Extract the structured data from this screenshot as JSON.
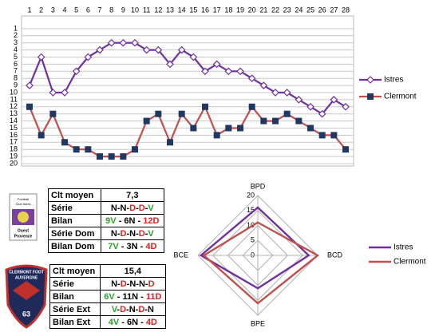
{
  "chart_data": [
    {
      "type": "line",
      "x": [
        1,
        2,
        3,
        4,
        5,
        6,
        7,
        8,
        9,
        10,
        11,
        12,
        13,
        14,
        15,
        16,
        17,
        18,
        19,
        20,
        21,
        22,
        23,
        24,
        25,
        26,
        27,
        28
      ],
      "xlim": [
        1,
        28
      ],
      "xticks": [
        1,
        2,
        3,
        4,
        5,
        6,
        7,
        8,
        9,
        10,
        11,
        12,
        13,
        14,
        15,
        16,
        17,
        18,
        19,
        20,
        21,
        22,
        23,
        24,
        25,
        26,
        27,
        28
      ],
      "ylim": [
        0,
        20
      ],
      "yticks": [
        1,
        2,
        3,
        4,
        5,
        6,
        7,
        8,
        9,
        10,
        11,
        12,
        13,
        14,
        15,
        16,
        17,
        18,
        19,
        20
      ],
      "y_reversed": true,
      "grid": true,
      "legend": "right",
      "series": [
        {
          "name": "Istres",
          "color": "#7030a0",
          "marker": "diamond",
          "marker_color": "#ffffff",
          "values": [
            9,
            5,
            10,
            10,
            7,
            5,
            4,
            3,
            3,
            3,
            4,
            4,
            6,
            4,
            5,
            7,
            6,
            7,
            7,
            8,
            9,
            10,
            10,
            11,
            12,
            13,
            11,
            12
          ]
        },
        {
          "name": "Clermont",
          "color": "#c0504d",
          "marker": "square",
          "marker_color": "#1f3864",
          "values": [
            12,
            16,
            13,
            17,
            18,
            18,
            19,
            19,
            19,
            18,
            14,
            13,
            17,
            13,
            15,
            12,
            16,
            15,
            15,
            12,
            14,
            14,
            13,
            14,
            15,
            16,
            16,
            18
          ]
        }
      ]
    },
    {
      "type": "radar",
      "categories": [
        "BPD",
        "BCD",
        "BPE",
        "BCE"
      ],
      "rlim": [
        0,
        20
      ],
      "rticks": [
        0,
        5,
        10,
        15,
        20
      ],
      "grid": true,
      "legend": "right",
      "series": [
        {
          "name": "Istres",
          "color": "#7030a0",
          "values": [
            16,
            17,
            11,
            19
          ]
        },
        {
          "name": "Clermont",
          "color": "#c0504d",
          "values": [
            11,
            20,
            16,
            18
          ]
        }
      ]
    }
  ],
  "tables": [
    {
      "rows": [
        [
          "Clt moyen",
          "7,3"
        ],
        [
          "Série",
          "N-N-D-D-V"
        ],
        [
          "Bilan",
          "9V - 6N - 12D"
        ],
        [
          "Série Dom",
          "N-D-N-D-V"
        ],
        [
          "Bilan Dom",
          "7V - 3N - 4D"
        ]
      ]
    },
    {
      "rows": [
        [
          "Clt moyen",
          "15,4"
        ],
        [
          "Série",
          "N-D-N-N-D"
        ],
        [
          "Bilan",
          "6V - 11N - 11D"
        ],
        [
          "Série Ext",
          "V-D-N-D-N"
        ],
        [
          "Bilan Ext",
          "4V - 6N - 4D"
        ]
      ]
    }
  ],
  "logos": {
    "istres": [
      "Football",
      "Club Istres",
      "Ouest",
      "Provence"
    ],
    "clermont": [
      "CLERMONT FOOT",
      "AUVERGNE",
      "63"
    ]
  }
}
